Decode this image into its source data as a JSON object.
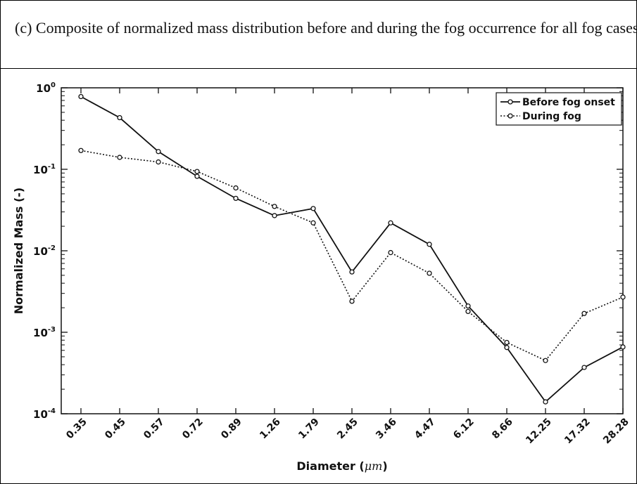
{
  "caption": "(c) Composite of normalized mass distribution before and during the fog occurrence for all fog cases",
  "chart_data": {
    "type": "line",
    "yscale": "log",
    "ylim": [
      0.0001,
      1
    ],
    "x_categories": [
      "0.35",
      "0.45",
      "0.57",
      "0.72",
      "0.89",
      "1.26",
      "1.79",
      "2.45",
      "3.46",
      "4.47",
      "6.12",
      "8.66",
      "12.25",
      "17.32",
      "28.28"
    ],
    "xlabel_prefix": "Diameter (",
    "xlabel_unit": "μm",
    "xlabel_suffix": ")",
    "ylabel": "Normalized Mass (-)",
    "y_ticks": [
      {
        "value": 1,
        "base": "10",
        "exp": "0"
      },
      {
        "value": 0.1,
        "base": "10",
        "exp": "-1"
      },
      {
        "value": 0.01,
        "base": "10",
        "exp": "-2"
      },
      {
        "value": 0.001,
        "base": "10",
        "exp": "-3"
      },
      {
        "value": 0.0001,
        "base": "10",
        "exp": "-4"
      }
    ],
    "legend_position": "top-right",
    "series": [
      {
        "name": "Before fog onset",
        "style": "solid",
        "values": [
          0.78,
          0.43,
          0.165,
          0.082,
          0.044,
          0.027,
          0.033,
          0.0055,
          0.022,
          0.012,
          0.0021,
          0.00065,
          0.00014,
          0.00037,
          0.00066
        ]
      },
      {
        "name": "During fog",
        "style": "dotted",
        "values": [
          0.17,
          0.14,
          0.123,
          0.094,
          0.059,
          0.035,
          0.022,
          0.0024,
          0.0095,
          0.0053,
          0.0018,
          0.00075,
          0.00045,
          0.0017,
          0.0027
        ]
      }
    ]
  }
}
